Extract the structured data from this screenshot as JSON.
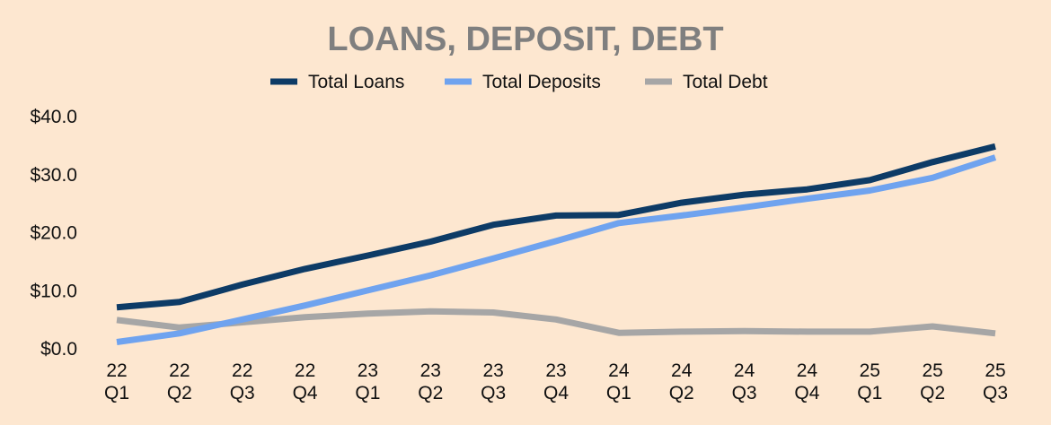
{
  "chart_data": {
    "type": "line",
    "title": "LOANS, DEPOSIT, DEBT",
    "xlabel": "",
    "ylabel": "",
    "categories": [
      [
        "22",
        "Q1"
      ],
      [
        "22",
        "Q2"
      ],
      [
        "22",
        "Q3"
      ],
      [
        "22",
        "Q4"
      ],
      [
        "23",
        "Q1"
      ],
      [
        "23",
        "Q2"
      ],
      [
        "23",
        "Q3"
      ],
      [
        "23",
        "Q4"
      ],
      [
        "24",
        "Q1"
      ],
      [
        "24",
        "Q2"
      ],
      [
        "24",
        "Q3"
      ],
      [
        "24",
        "Q4"
      ],
      [
        "25",
        "Q1"
      ],
      [
        "25",
        "Q2"
      ],
      [
        "25",
        "Q3"
      ]
    ],
    "y_ticks": [
      "$0.0",
      "$10.0",
      "$20.0",
      "$30.0",
      "$40.0"
    ],
    "ylim": [
      0,
      40
    ],
    "grid": false,
    "legend": "top-center",
    "series": [
      {
        "name": "Total Loans",
        "color": "#0d3b66",
        "values": [
          7.0,
          7.9,
          10.9,
          13.6,
          15.9,
          18.3,
          21.2,
          22.8,
          22.9,
          25.0,
          26.4,
          27.3,
          28.9,
          32.0,
          34.7
        ]
      },
      {
        "name": "Total Deposits",
        "color": "#6fa3ef",
        "values": [
          1.0,
          2.5,
          4.9,
          7.3,
          9.9,
          12.5,
          15.4,
          18.4,
          21.5,
          22.8,
          24.2,
          25.7,
          27.1,
          29.3,
          32.8
        ]
      },
      {
        "name": "Total Debt",
        "color": "#a6a6a6",
        "values": [
          4.8,
          3.5,
          4.4,
          5.3,
          5.9,
          6.3,
          6.1,
          4.9,
          2.6,
          2.8,
          2.9,
          2.8,
          2.8,
          3.7,
          2.5
        ]
      }
    ]
  }
}
